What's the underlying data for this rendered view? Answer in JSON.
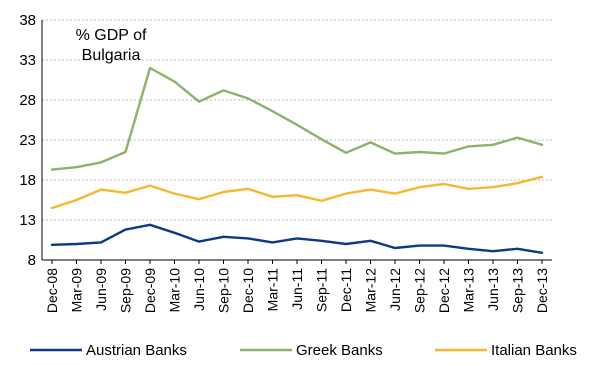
{
  "chart_data": {
    "type": "line",
    "annotation": [
      "% GDP of",
      "Bulgaria"
    ],
    "x": [
      "Dec-08",
      "Mar-09",
      "Jun-09",
      "Sep-09",
      "Dec-09",
      "Mar-10",
      "Jun-10",
      "Sep-10",
      "Dec-10",
      "Mar-11",
      "Jun-11",
      "Sep-11",
      "Dec-11",
      "Mar-12",
      "Jun-12",
      "Sep-12",
      "Dec-12",
      "Mar-13",
      "Jun-13",
      "Sep-13",
      "Dec-13"
    ],
    "ylim": [
      8,
      38
    ],
    "yticks": [
      8,
      13,
      18,
      23,
      28,
      33,
      38
    ],
    "grid": true,
    "legend": "bottom",
    "series": [
      {
        "name": "Austrian Banks",
        "color": "#0c3a84",
        "values": [
          9.9,
          10.0,
          10.2,
          11.8,
          12.4,
          11.4,
          10.3,
          10.9,
          10.7,
          10.2,
          10.7,
          10.4,
          10.0,
          10.4,
          9.5,
          9.8,
          9.8,
          9.4,
          9.1,
          9.4,
          8.9
        ]
      },
      {
        "name": "Greek Banks",
        "color": "#8db26b",
        "values": [
          19.3,
          19.6,
          20.2,
          21.5,
          32.0,
          30.3,
          27.8,
          29.2,
          28.2,
          26.6,
          24.9,
          23.1,
          21.4,
          22.7,
          21.3,
          21.5,
          21.3,
          22.2,
          22.4,
          23.3,
          22.4
        ]
      },
      {
        "name": "Italian Banks",
        "color": "#f5b82e",
        "values": [
          14.5,
          15.5,
          16.8,
          16.4,
          17.3,
          16.3,
          15.6,
          16.5,
          16.9,
          15.9,
          16.1,
          15.4,
          16.3,
          16.8,
          16.3,
          17.1,
          17.5,
          16.9,
          17.1,
          17.6,
          18.4
        ]
      }
    ]
  }
}
